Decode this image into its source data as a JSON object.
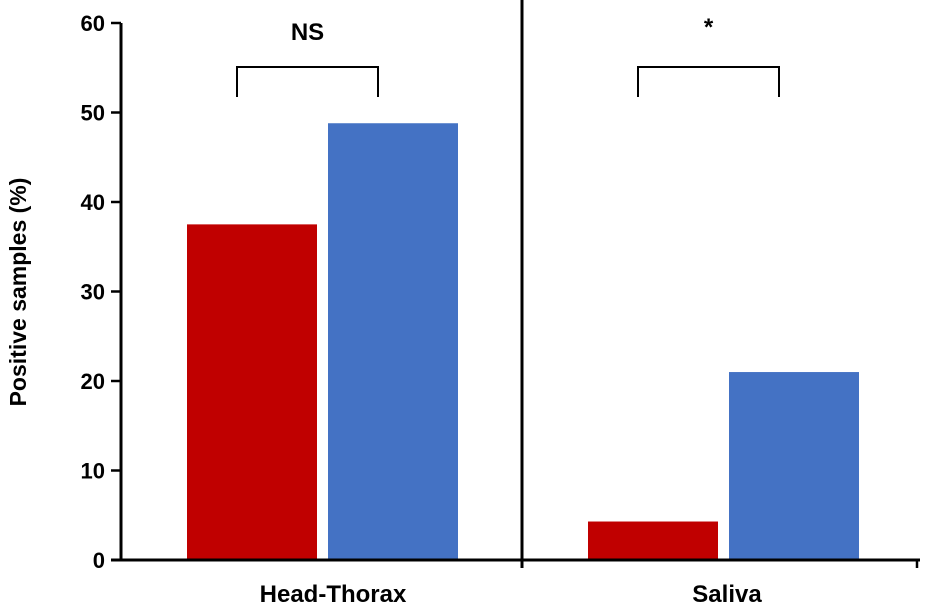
{
  "chart_data": {
    "type": "bar",
    "categories": [
      "Head-Thorax",
      "Saliva"
    ],
    "series": [
      {
        "color": "#C00000",
        "values": [
          37.5,
          4.3
        ]
      },
      {
        "color": "#4472C4",
        "values": [
          48.8,
          21.0
        ]
      }
    ],
    "title": "",
    "xlabel": "",
    "ylabel": "Positive samples (%)",
    "ylim": [
      0,
      60
    ],
    "yticks": [
      0,
      10,
      20,
      30,
      40,
      50,
      60
    ],
    "significance": [
      "NS",
      "*"
    ],
    "grid": false,
    "legend": "none"
  }
}
